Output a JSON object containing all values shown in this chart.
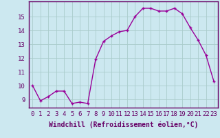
{
  "x": [
    0,
    1,
    2,
    3,
    4,
    5,
    6,
    7,
    8,
    9,
    10,
    11,
    12,
    13,
    14,
    15,
    16,
    17,
    18,
    19,
    20,
    21,
    22,
    23
  ],
  "y": [
    10.0,
    8.9,
    9.2,
    9.6,
    9.6,
    8.7,
    8.8,
    8.7,
    11.9,
    13.2,
    13.6,
    13.9,
    14.0,
    15.0,
    15.6,
    15.6,
    15.4,
    15.4,
    15.6,
    15.2,
    14.2,
    13.3,
    12.2,
    10.3
  ],
  "line_color": "#990099",
  "marker": "+",
  "markersize": 3.5,
  "linewidth": 1.0,
  "bg_color": "#cce8f0",
  "grid_color": "#aacccc",
  "xlabel": "Windchill (Refroidissement éolien,°C)",
  "xlabel_fontsize": 7,
  "tick_fontsize": 6.5,
  "ylabel_ticks": [
    9,
    10,
    11,
    12,
    13,
    14,
    15
  ],
  "xlim": [
    -0.5,
    23.5
  ],
  "ylim": [
    8.4,
    16.1
  ],
  "xtick_labels": [
    "0",
    "1",
    "2",
    "3",
    "4",
    "5",
    "6",
    "7",
    "8",
    "9",
    "10",
    "11",
    "12",
    "13",
    "14",
    "15",
    "16",
    "17",
    "18",
    "19",
    "20",
    "21",
    "22",
    "23"
  ]
}
